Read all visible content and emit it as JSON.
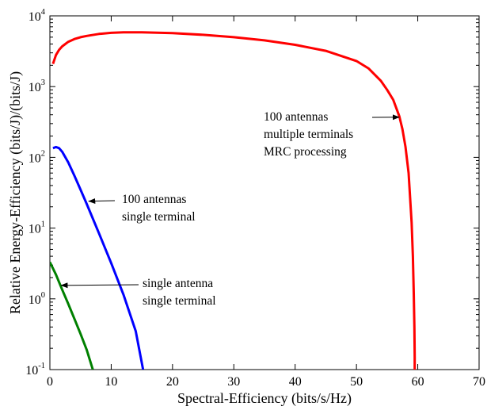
{
  "chart_data": {
    "type": "line",
    "title": "",
    "xlabel": "Spectral-Efficiency (bits/s/Hz)",
    "ylabel": "Relative Energy-Efficiency (bits/J)/(bits/J)",
    "xlim": [
      0,
      70
    ],
    "ylim": [
      0.1,
      10000
    ],
    "yscale": "log",
    "grid": false,
    "legend": "none",
    "x_ticks": [
      0,
      10,
      20,
      30,
      40,
      50,
      60,
      70
    ],
    "x_tick_labels": [
      "0",
      "10",
      "20",
      "30",
      "40",
      "50",
      "60",
      "70"
    ],
    "y_ticks": [
      0.1,
      1,
      10,
      100,
      1000,
      10000
    ],
    "y_tick_labels": [
      {
        "base": "10",
        "exp": "-1"
      },
      {
        "base": "10",
        "exp": "0"
      },
      {
        "base": "10",
        "exp": "1"
      },
      {
        "base": "10",
        "exp": "2"
      },
      {
        "base": "10",
        "exp": "3"
      },
      {
        "base": "10",
        "exp": "4"
      }
    ],
    "series": [
      {
        "color": "#ff0000",
        "x": [
          0.5,
          1,
          1.5,
          2,
          3,
          4,
          5,
          6,
          8,
          10,
          12,
          15,
          20,
          25,
          30,
          35,
          40,
          45,
          50,
          52,
          54,
          55,
          56,
          57,
          57.5,
          58,
          58.5,
          59,
          59.2,
          59.35,
          59.45,
          59.5,
          59.5
        ],
        "y": [
          2100,
          2800,
          3300,
          3700,
          4300,
          4700,
          5000,
          5200,
          5550,
          5750,
          5850,
          5850,
          5700,
          5400,
          5000,
          4500,
          3900,
          3200,
          2300,
          1800,
          1200,
          900,
          650,
          380,
          250,
          140,
          60,
          12,
          4,
          1.2,
          0.4,
          0.15,
          0.1
        ]
      },
      {
        "color": "#0000ff",
        "x": [
          0.5,
          1,
          1.5,
          2,
          3,
          4,
          5,
          6,
          8,
          10,
          12,
          14,
          15.2
        ],
        "y": [
          135,
          140,
          135,
          120,
          85,
          55,
          35,
          22,
          8.5,
          3.2,
          1.15,
          0.35,
          0.1
        ]
      },
      {
        "color": "#008000",
        "x": [
          0,
          1,
          2,
          3,
          4,
          5,
          6,
          7
        ],
        "y": [
          3.3,
          2.2,
          1.35,
          0.85,
          0.52,
          0.32,
          0.19,
          0.1
        ]
      }
    ],
    "annotations": [
      {
        "lines": [
          "100 antennas",
          "multiple terminals",
          "MRC processing"
        ],
        "arrow_to": [
          57,
          370
        ]
      },
      {
        "lines": [
          "100 antennas",
          "single terminal"
        ],
        "arrow_to": [
          6.3,
          24
        ]
      },
      {
        "lines": [
          "single antenna",
          "single terminal"
        ],
        "arrow_to": [
          1.8,
          1.55
        ]
      }
    ]
  }
}
